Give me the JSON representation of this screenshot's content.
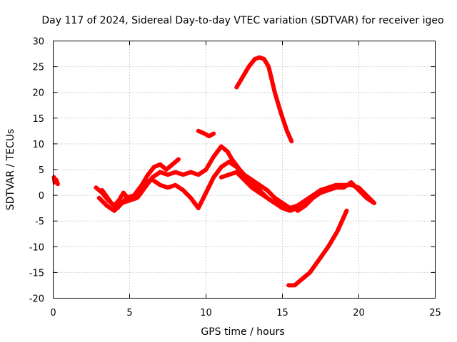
{
  "chart_data": {
    "type": "line",
    "title": "Day 117 of 2024, Sidereal Day-to-day VTEC variation (SDTVAR) for receiver igeo",
    "xlabel": "GPS time / hours",
    "ylabel": "SDTVAR / TECUs",
    "xlim": [
      0,
      25
    ],
    "ylim": [
      -20,
      30
    ],
    "xticks": [
      0,
      5,
      10,
      15,
      20,
      25
    ],
    "yticks": [
      -20,
      -15,
      -10,
      -5,
      0,
      5,
      10,
      15,
      20,
      25,
      30
    ],
    "xtick_labels": [
      "0",
      "5",
      "10",
      "15",
      "20",
      "25"
    ],
    "ytick_labels": [
      "-20",
      "-15",
      "-10",
      "-5",
      "0",
      "5",
      "10",
      "15",
      "20",
      "25",
      "30"
    ],
    "grid": true,
    "color": "#ff0000",
    "series": [
      {
        "name": "s1",
        "x": [
          0.05,
          0.1,
          0.2,
          0.3
        ],
        "y": [
          3.5,
          2.5,
          3.0,
          2.2
        ]
      },
      {
        "name": "s2",
        "x": [
          2.8,
          3.2,
          3.6,
          4.0,
          4.3,
          4.6,
          5.0,
          5.5,
          6.0,
          6.5,
          7.0,
          7.5,
          8.0,
          8.5,
          9.0,
          9.5,
          10.0,
          10.5,
          11.0,
          11.4,
          11.7,
          12.2,
          12.8,
          13.5,
          14.0,
          14.5,
          15.0,
          15.5,
          16.0
        ],
        "y": [
          1.5,
          0.5,
          -1.0,
          -2.0,
          -1.0,
          0.5,
          -1.0,
          -0.5,
          1.5,
          3.5,
          4.5,
          4.0,
          4.5,
          4.0,
          4.5,
          4.0,
          5.0,
          7.5,
          9.5,
          8.5,
          7.0,
          5.0,
          3.0,
          1.0,
          -0.5,
          -1.5,
          -2.5,
          -3.0,
          -2.5
        ]
      },
      {
        "name": "s3",
        "x": [
          3.0,
          3.5,
          4.0,
          4.5,
          5.0,
          5.5,
          6.0,
          6.5,
          7.0,
          7.5,
          8.0,
          8.5,
          9.0,
          9.5,
          10.0,
          10.5,
          11.0,
          11.5,
          12.0,
          12.5,
          13.0,
          13.5,
          14.0,
          14.5,
          15.0,
          15.5,
          16.0
        ],
        "y": [
          -0.5,
          -2.0,
          -3.0,
          -1.5,
          -1.0,
          0.5,
          2.5,
          3.0,
          2.0,
          1.5,
          2.0,
          1.0,
          -0.5,
          -2.5,
          0.5,
          3.5,
          5.5,
          6.5,
          5.5,
          4.0,
          3.0,
          2.0,
          1.0,
          -0.5,
          -1.5,
          -2.5,
          -2.0
        ]
      },
      {
        "name": "s4",
        "x": [
          3.2,
          3.8,
          4.2,
          4.8,
          5.3,
          5.8,
          6.2,
          6.6,
          7.0,
          7.4,
          7.8,
          8.2
        ],
        "y": [
          1.0,
          -1.5,
          -2.5,
          -0.5,
          0.0,
          2.0,
          4.0,
          5.5,
          6.0,
          5.0,
          6.0,
          7.0
        ]
      },
      {
        "name": "s5",
        "x": [
          9.5,
          9.9,
          10.2,
          10.5
        ],
        "y": [
          12.5,
          12.0,
          11.5,
          12.0
        ]
      },
      {
        "name": "s6",
        "x": [
          11.0,
          11.5,
          12.0,
          12.5,
          13.0,
          13.5,
          14.0,
          14.5,
          15.0,
          15.5,
          16.0
        ],
        "y": [
          3.5,
          4.0,
          4.5,
          3.0,
          1.5,
          0.5,
          -0.5,
          -1.5,
          -2.0,
          -2.5,
          -2.5
        ]
      },
      {
        "name": "s7",
        "x": [
          12.0,
          12.4,
          12.8,
          13.2,
          13.5,
          13.8,
          14.1,
          14.5,
          14.9,
          15.3,
          15.6
        ],
        "y": [
          21.0,
          23.0,
          25.0,
          26.5,
          26.8,
          26.5,
          25.0,
          20.0,
          16.0,
          12.5,
          10.5
        ]
      },
      {
        "name": "s8",
        "x": [
          15.4,
          15.8,
          16.2,
          16.8,
          17.4,
          18.0,
          18.6,
          19.2
        ],
        "y": [
          -17.5,
          -17.5,
          -16.5,
          -15.0,
          -12.5,
          -10.0,
          -7.0,
          -3.0
        ]
      },
      {
        "name": "s9",
        "x": [
          15.5,
          16.0,
          16.5,
          17.0,
          17.5,
          18.0,
          18.5,
          19.0,
          19.5,
          20.0,
          20.5,
          21.0
        ],
        "y": [
          -2.5,
          -2.0,
          -1.0,
          0.0,
          1.0,
          1.5,
          2.0,
          2.0,
          2.0,
          1.5,
          0.0,
          -1.5
        ]
      },
      {
        "name": "s10",
        "x": [
          16.0,
          16.5,
          17.0,
          17.5,
          18.0,
          18.5,
          19.0,
          19.5,
          20.0,
          20.5,
          21.0
        ],
        "y": [
          -3.0,
          -2.0,
          -0.5,
          0.5,
          1.0,
          1.5,
          1.5,
          2.5,
          1.0,
          -0.5,
          -1.5
        ]
      }
    ]
  }
}
